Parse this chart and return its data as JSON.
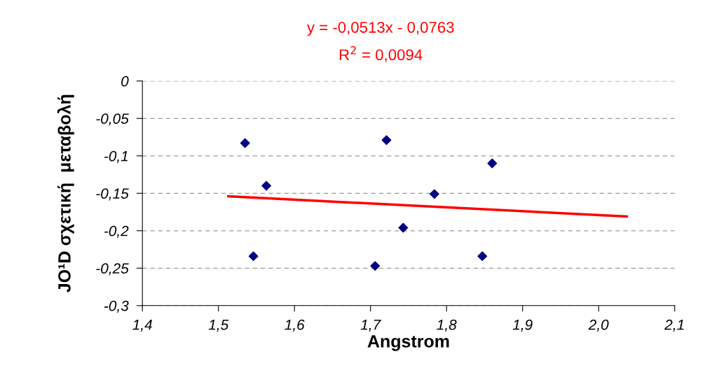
{
  "chart_data": {
    "type": "scatter",
    "xlabel": "Angstrom",
    "ylabel": "JO¹D σχετική  μεταβολή",
    "annotations": [
      "y = -0,0513x - 0,0763",
      "R$^{2}$ = 0,0094"
    ],
    "series": [
      {
        "color": "#000080",
        "marker": "diamond",
        "x": [
          1.535,
          1.546,
          1.563,
          1.721,
          1.706,
          1.743,
          1.784,
          1.847,
          1.86
        ],
        "values": [
          -0.083,
          -0.234,
          -0.14,
          -0.079,
          -0.247,
          -0.196,
          -0.151,
          -0.234,
          -0.11
        ]
      },
      {
        "type": "line",
        "color": "#ff0000",
        "marker": "none",
        "x": [
          1.513,
          2.037
        ],
        "values": [
          -0.154,
          -0.181
        ]
      }
    ],
    "xlim": [
      1.4,
      2.1
    ],
    "ylim": [
      -0.3,
      0
    ],
    "xticks": [
      {
        "value": 1.4,
        "label": "1,4"
      },
      {
        "value": 1.5,
        "label": "1,5"
      },
      {
        "value": 1.6,
        "label": "1,6"
      },
      {
        "value": 1.7,
        "label": "1,7"
      },
      {
        "value": 1.8,
        "label": "1,8"
      },
      {
        "value": 1.9,
        "label": "1,9"
      },
      {
        "value": 2.0,
        "label": "2,0"
      },
      {
        "value": 2.1,
        "label": "2,1"
      }
    ],
    "yticks": [
      {
        "value": -0.3,
        "label": "-0,3"
      },
      {
        "value": -0.25,
        "label": "-0,25"
      },
      {
        "value": -0.2,
        "label": "-0,2"
      },
      {
        "value": -0.15,
        "label": "-0,15"
      },
      {
        "value": -0.1,
        "label": "-0,1"
      },
      {
        "value": -0.05,
        "label": "-0,05"
      },
      {
        "value": 0,
        "label": "0"
      }
    ],
    "grid": "y",
    "legend": false
  }
}
